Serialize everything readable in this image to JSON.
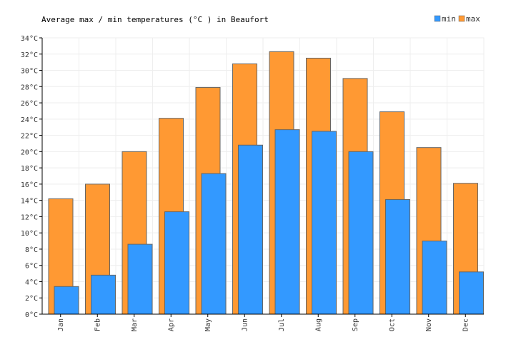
{
  "chart_data": {
    "type": "bar",
    "title": "Average max / min temperatures (°C ) in Beaufort",
    "xlabel": "",
    "ylabel": "",
    "categories": [
      "Jan",
      "Feb",
      "Mar",
      "Apr",
      "May",
      "Jun",
      "Jul",
      "Aug",
      "Sep",
      "Oct",
      "Nov",
      "Dec"
    ],
    "series": [
      {
        "name": "max",
        "color": "#ff9933",
        "values": [
          14.2,
          16.0,
          20.0,
          24.1,
          27.9,
          30.8,
          32.3,
          31.5,
          29.0,
          24.9,
          20.5,
          16.1
        ]
      },
      {
        "name": "min",
        "color": "#3399ff",
        "values": [
          3.4,
          4.8,
          8.6,
          12.6,
          17.3,
          20.8,
          22.7,
          22.5,
          20.0,
          14.1,
          9.0,
          5.2
        ]
      }
    ],
    "ylim": [
      0,
      34
    ],
    "ytick_step": 2,
    "ytick_suffix": "°C",
    "grid": true,
    "legend_position": "top-right"
  }
}
